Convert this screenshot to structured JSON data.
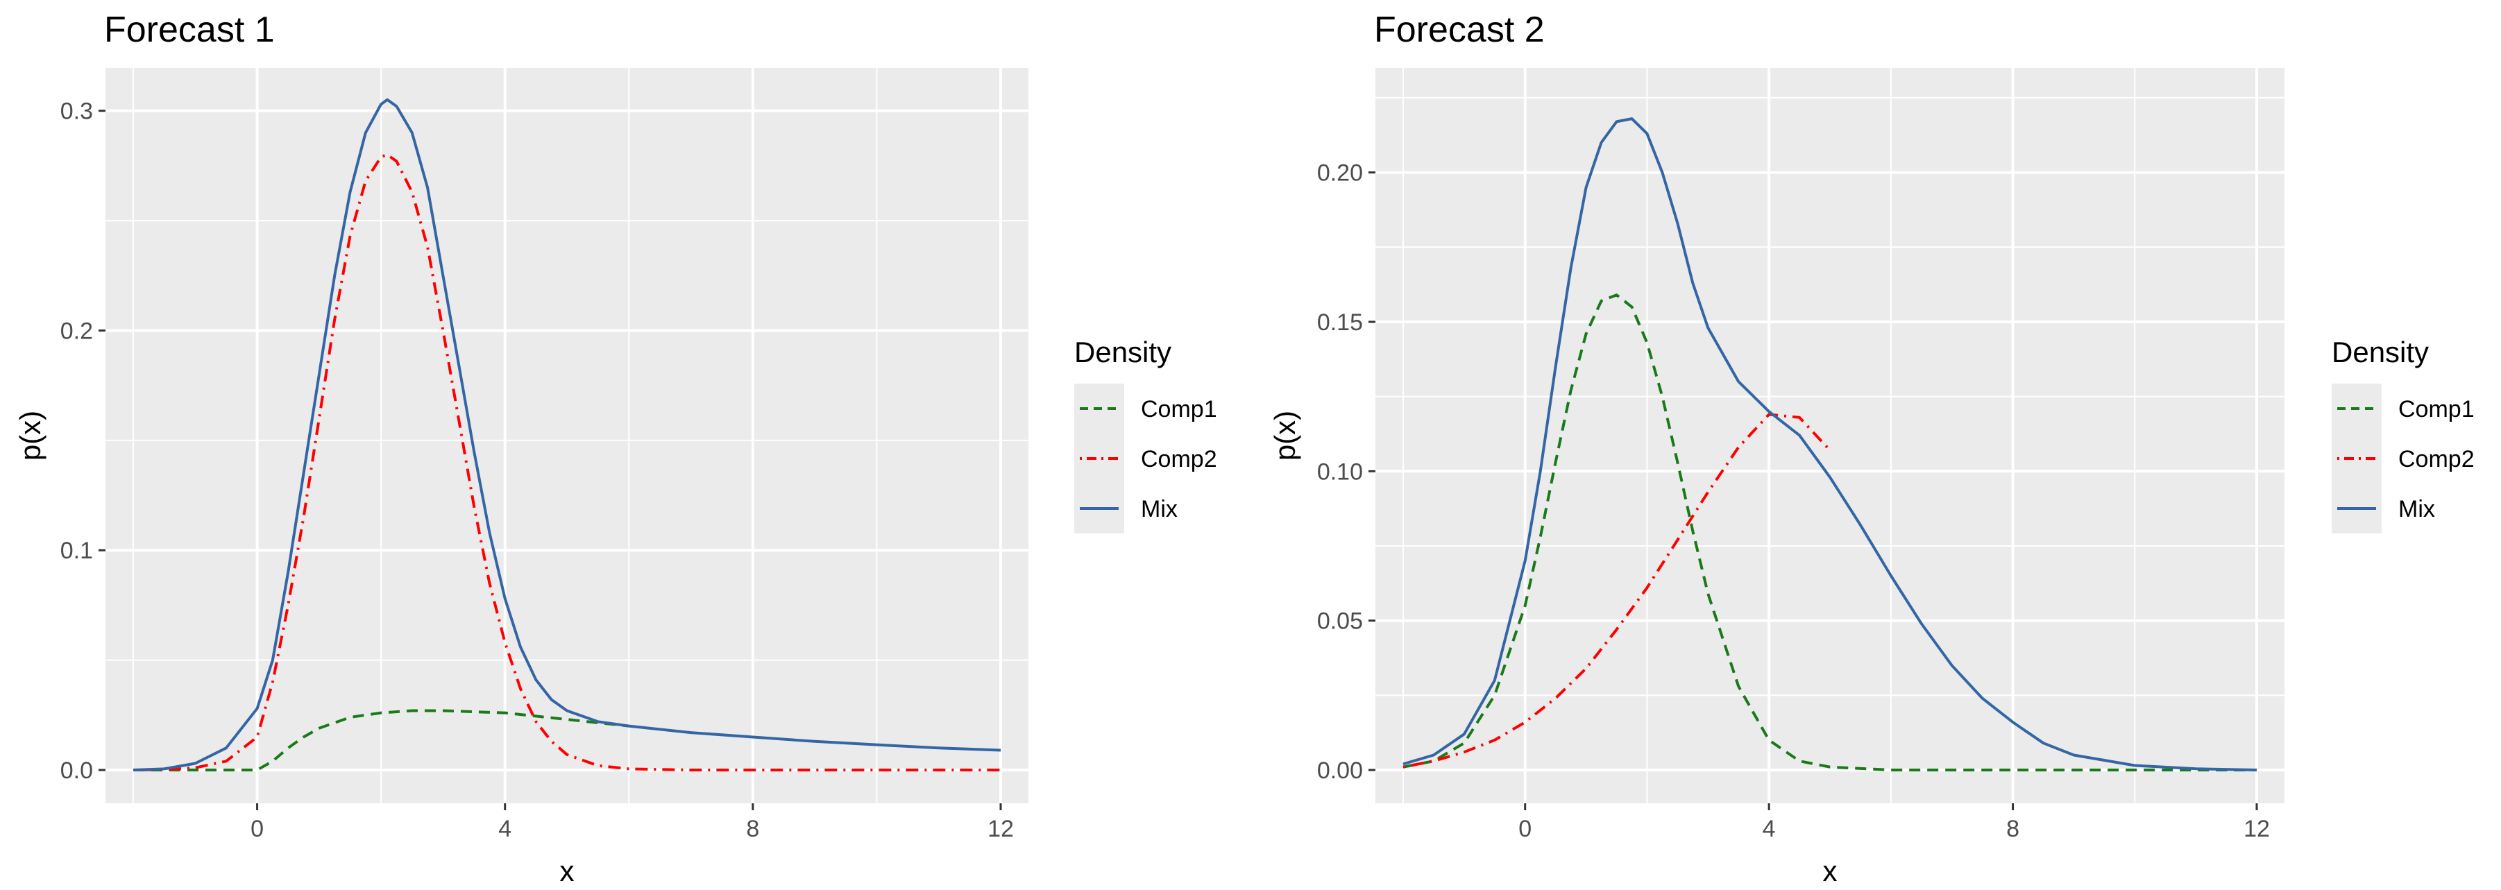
{
  "chart_data": [
    {
      "type": "line",
      "title": "Forecast 1",
      "xlabel": "x",
      "ylabel": "p(x)",
      "xlim": [
        -2,
        12
      ],
      "ylim": [
        0,
        0.31
      ],
      "x_ticks": [
        0,
        4,
        8,
        12
      ],
      "x_tick_labels": [
        "0",
        "4",
        "8",
        "12"
      ],
      "y_ticks": [
        0,
        0.1,
        0.2,
        0.3
      ],
      "y_tick_labels": [
        "0.0",
        "0.1",
        "0.2",
        "0.3"
      ],
      "grid": true,
      "legend": {
        "title": "Density",
        "position": "right"
      },
      "series": [
        {
          "name": "Comp1",
          "color": "#1a7a1a",
          "dash": "dashed",
          "x": [
            -2,
            -1.5,
            -1,
            -0.5,
            0,
            0.25,
            0.5,
            0.75,
            1,
            1.5,
            2,
            2.5,
            3,
            3.5,
            4,
            4.5,
            5,
            5.5,
            6
          ],
          "y": [
            0,
            0,
            0,
            0,
            0,
            0.004,
            0.01,
            0.015,
            0.019,
            0.024,
            0.026,
            0.027,
            0.027,
            0.0265,
            0.026,
            0.0245,
            0.023,
            0.0215,
            0.02
          ]
        },
        {
          "name": "Comp2",
          "color": "#ff0000",
          "dash": "dotdash",
          "x": [
            -2,
            -1.5,
            -1,
            -0.5,
            0,
            0.25,
            0.5,
            0.75,
            1,
            1.25,
            1.5,
            1.75,
            2,
            2.1,
            2.25,
            2.5,
            2.75,
            3,
            3.25,
            3.5,
            3.75,
            4,
            4.25,
            4.5,
            4.75,
            5,
            5.5,
            6,
            7,
            8,
            9,
            10,
            11,
            12
          ],
          "y": [
            0,
            0.0002,
            0.001,
            0.004,
            0.015,
            0.04,
            0.075,
            0.115,
            0.16,
            0.205,
            0.243,
            0.268,
            0.279,
            0.28,
            0.277,
            0.263,
            0.238,
            0.2,
            0.16,
            0.12,
            0.085,
            0.058,
            0.037,
            0.022,
            0.013,
            0.007,
            0.002,
            0.0005,
            0,
            0,
            0,
            0,
            0,
            0
          ]
        },
        {
          "name": "Mix",
          "color": "#3465a4",
          "dash": "solid",
          "x": [
            -2,
            -1.5,
            -1,
            -0.5,
            0,
            0.25,
            0.5,
            0.75,
            1,
            1.25,
            1.5,
            1.75,
            2,
            2.1,
            2.25,
            2.5,
            2.75,
            3,
            3.25,
            3.5,
            3.75,
            4,
            4.25,
            4.5,
            4.75,
            5,
            5.5,
            6,
            7,
            8,
            9,
            10,
            11,
            12
          ],
          "y": [
            0,
            0.0005,
            0.003,
            0.01,
            0.028,
            0.05,
            0.09,
            0.135,
            0.18,
            0.225,
            0.263,
            0.29,
            0.303,
            0.305,
            0.302,
            0.29,
            0.265,
            0.225,
            0.185,
            0.145,
            0.108,
            0.078,
            0.056,
            0.041,
            0.032,
            0.027,
            0.022,
            0.02,
            0.017,
            0.015,
            0.013,
            0.0115,
            0.01,
            0.009
          ]
        }
      ]
    },
    {
      "type": "line",
      "title": "Forecast 2",
      "xlabel": "x",
      "ylabel": "p(x)",
      "xlim": [
        -2,
        12
      ],
      "ylim": [
        0,
        0.228
      ],
      "x_ticks": [
        0,
        4,
        8,
        12
      ],
      "x_tick_labels": [
        "0",
        "4",
        "8",
        "12"
      ],
      "y_ticks": [
        0,
        0.05,
        0.1,
        0.15,
        0.2
      ],
      "y_tick_labels": [
        "0.00",
        "0.05",
        "0.10",
        "0.15",
        "0.20"
      ],
      "grid": true,
      "legend": {
        "title": "Density",
        "position": "right"
      },
      "series": [
        {
          "name": "Comp1",
          "color": "#1a7a1a",
          "dash": "dashed",
          "x": [
            -2,
            -1.5,
            -1,
            -0.5,
            0,
            0.25,
            0.5,
            0.75,
            1,
            1.25,
            1.5,
            1.75,
            2,
            2.25,
            2.5,
            2.75,
            3,
            3.5,
            4,
            4.5,
            5,
            6,
            8,
            10,
            12
          ],
          "y": [
            0.001,
            0.003,
            0.009,
            0.025,
            0.055,
            0.078,
            0.103,
            0.127,
            0.146,
            0.157,
            0.159,
            0.155,
            0.143,
            0.125,
            0.103,
            0.08,
            0.059,
            0.028,
            0.01,
            0.003,
            0.001,
            0,
            0,
            0,
            0
          ]
        },
        {
          "name": "Comp2",
          "color": "#ff0000",
          "dash": "dotdash",
          "x": [
            -2,
            -1.5,
            -1,
            -0.5,
            0,
            0.5,
            1,
            1.5,
            2,
            2.5,
            3,
            3.5,
            4,
            4.5,
            5
          ],
          "y": [
            0.001,
            0.003,
            0.006,
            0.01,
            0.016,
            0.024,
            0.034,
            0.047,
            0.061,
            0.077,
            0.093,
            0.108,
            0.119,
            0.118,
            0.107
          ]
        },
        {
          "name": "Mix",
          "color": "#3465a4",
          "dash": "solid",
          "x": [
            -2,
            -1.5,
            -1,
            -0.5,
            0,
            0.25,
            0.5,
            0.75,
            1,
            1.25,
            1.5,
            1.75,
            2,
            2.25,
            2.5,
            2.75,
            3,
            3.5,
            4,
            4.5,
            5,
            5.5,
            6,
            6.5,
            7,
            7.5,
            8,
            8.5,
            9,
            10,
            11,
            12
          ],
          "y": [
            0.002,
            0.005,
            0.012,
            0.03,
            0.07,
            0.1,
            0.135,
            0.168,
            0.195,
            0.21,
            0.217,
            0.218,
            0.213,
            0.2,
            0.183,
            0.163,
            0.148,
            0.13,
            0.12,
            0.112,
            0.098,
            0.082,
            0.065,
            0.049,
            0.035,
            0.024,
            0.016,
            0.009,
            0.005,
            0.0015,
            0.0004,
            0
          ]
        }
      ]
    }
  ]
}
